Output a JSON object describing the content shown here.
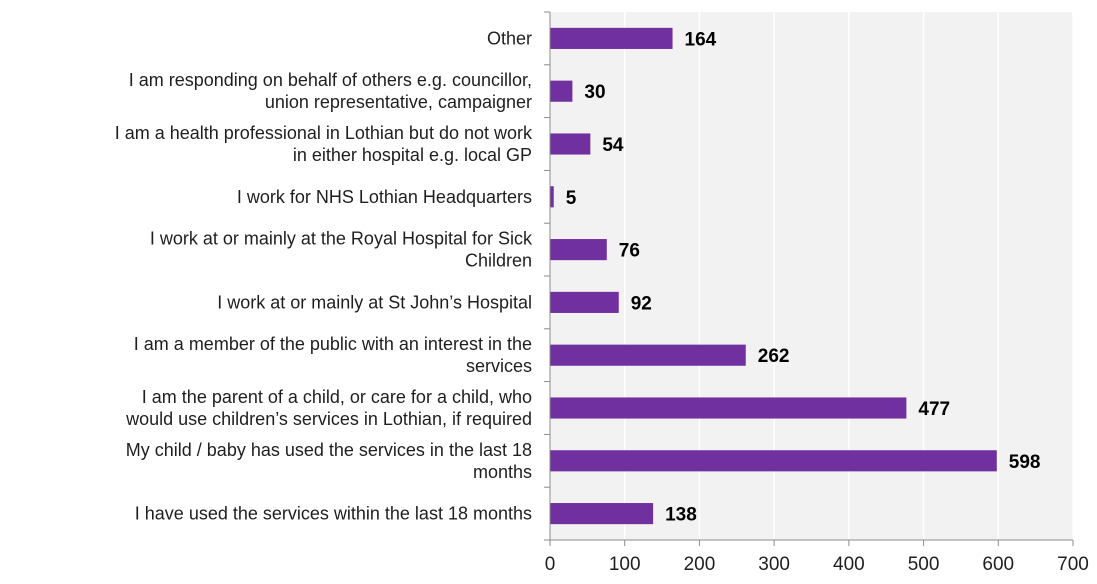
{
  "colors": {
    "bar": "#7030a0",
    "plot_background": "#f2f2f2",
    "gridline": "#ffffff",
    "axis": "#8c8c8c"
  },
  "chart_data": {
    "type": "bar",
    "orientation": "horizontal",
    "categories": [
      [
        "Other"
      ],
      [
        "I am responding on behalf of others e.g. councillor,",
        "union representative, campaigner"
      ],
      [
        "I am a health professional in Lothian but do not work",
        "in either hospital e.g. local GP"
      ],
      [
        "I work for NHS Lothian Headquarters"
      ],
      [
        "I work at or mainly at the Royal Hospital for Sick",
        "Children"
      ],
      [
        "I work at or mainly at St John’s Hospital"
      ],
      [
        "I am a member of the public with an interest in the",
        "services"
      ],
      [
        "I am the parent of a child, or care for a child, who",
        "would use children’s services in Lothian, if required"
      ],
      [
        "My child / baby has used the services in the last 18",
        "months"
      ],
      [
        "I have used the services within the last 18 months"
      ]
    ],
    "values": [
      164,
      30,
      54,
      5,
      76,
      92,
      262,
      477,
      598,
      138
    ],
    "xlim": [
      0,
      700
    ],
    "xticks": [
      0,
      100,
      200,
      300,
      400,
      500,
      600,
      700
    ],
    "grid": true,
    "data_labels": true,
    "legend": "none"
  }
}
